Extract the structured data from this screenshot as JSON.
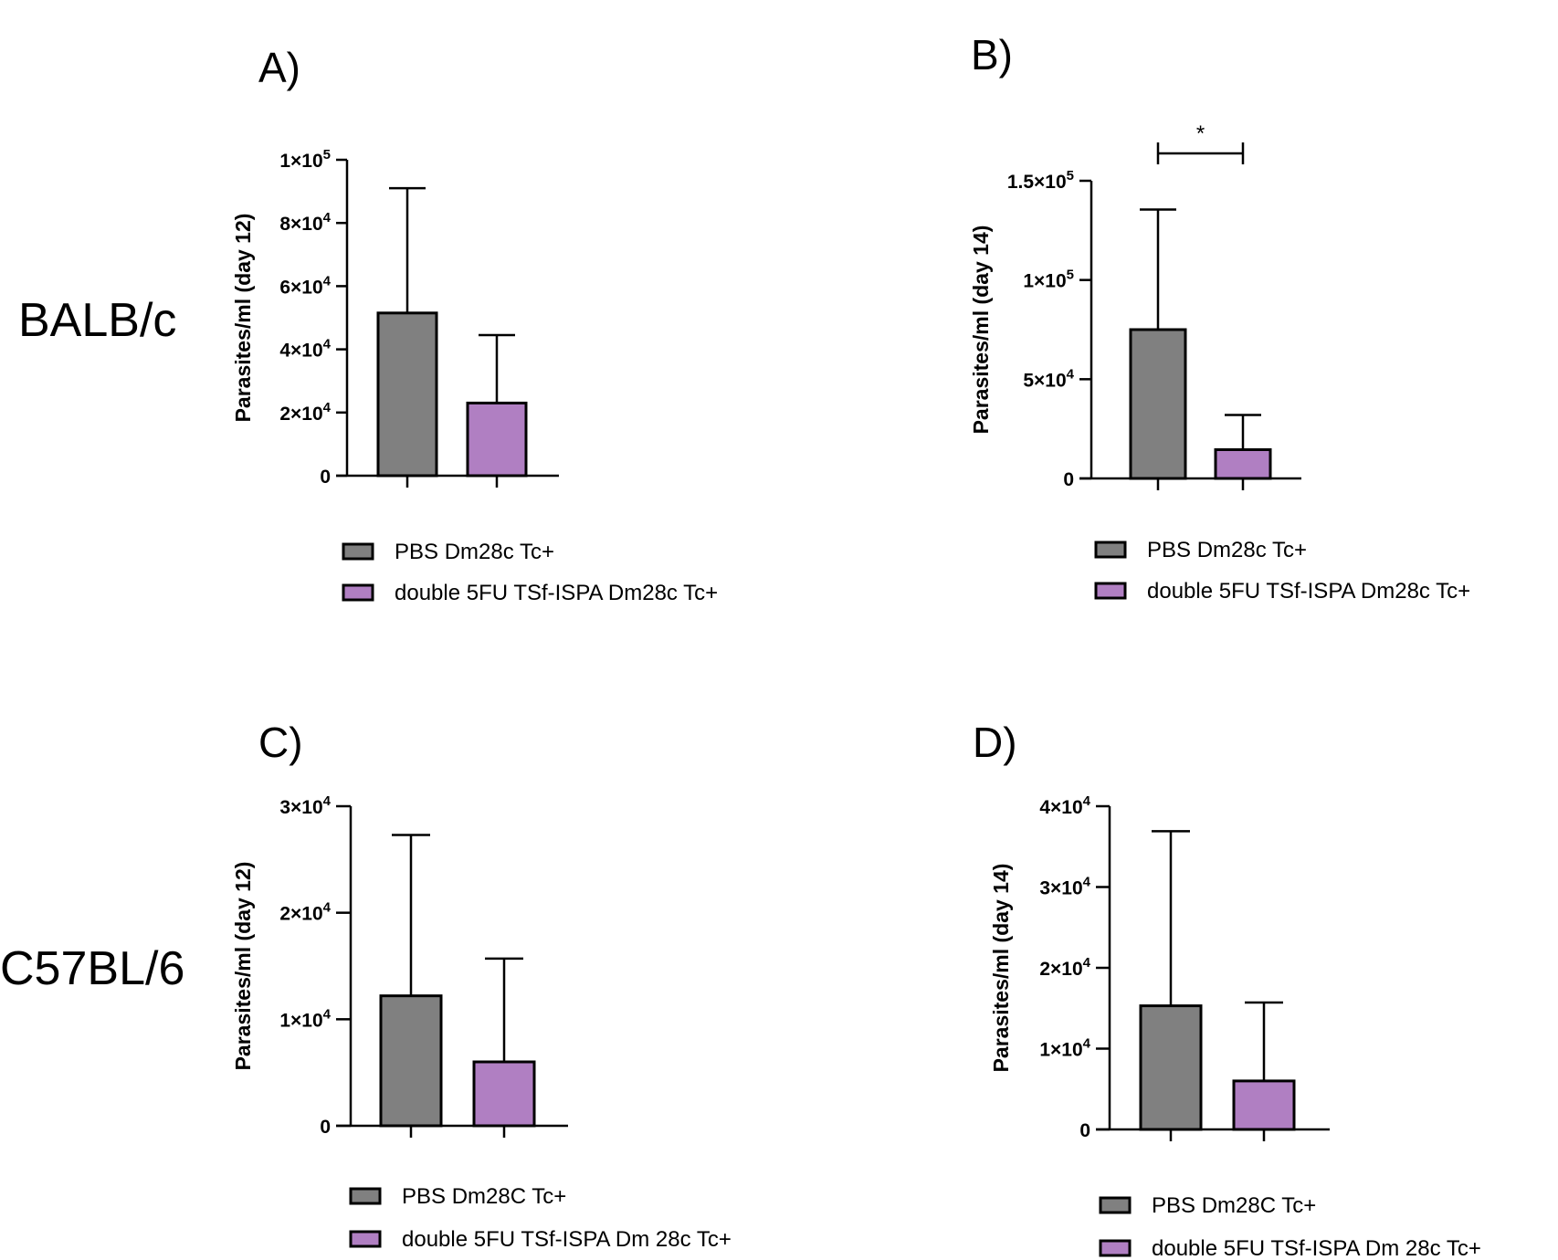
{
  "figure": {
    "row_labels": [
      "BALB/c",
      "C57BL/6"
    ]
  },
  "colors": {
    "pbs": "#808080",
    "vaccine": "#b07fc2",
    "stroke": "#000000"
  },
  "chart_data": [
    {
      "type": "bar",
      "panel": "A)",
      "mouse_strain": "BALB/c",
      "ylabel": "Parasites/ml (day 12)",
      "ylim": [
        0,
        100000
      ],
      "yticks": [
        {
          "value": 0,
          "base": "0",
          "exp": ""
        },
        {
          "value": 20000,
          "base": "2×10",
          "exp": "4"
        },
        {
          "value": 40000,
          "base": "4×10",
          "exp": "4"
        },
        {
          "value": 60000,
          "base": "6×10",
          "exp": "4"
        },
        {
          "value": 80000,
          "base": "8×10",
          "exp": "4"
        },
        {
          "value": 100000,
          "base": "1×10",
          "exp": "5"
        }
      ],
      "categories": [
        "PBS Dm28c Tc+",
        "double 5FU TSf-ISPA Dm28c Tc+"
      ],
      "values": [
        51500,
        23000
      ],
      "error": [
        39500,
        21500
      ],
      "legend": [
        "PBS Dm28c Tc+",
        "double 5FU TSf-ISPA Dm28c Tc+"
      ],
      "significance": null
    },
    {
      "type": "bar",
      "panel": "B)",
      "mouse_strain": "BALB/c",
      "ylabel": "Parasites/ml (day 14)",
      "ylim": [
        0,
        150000
      ],
      "yticks": [
        {
          "value": 0,
          "base": "0",
          "exp": ""
        },
        {
          "value": 50000,
          "base": "5×10",
          "exp": "4"
        },
        {
          "value": 100000,
          "base": "1×10",
          "exp": "5"
        },
        {
          "value": 150000,
          "base": "1.5×10",
          "exp": "5"
        }
      ],
      "categories": [
        "PBS Dm28c Tc+",
        "double 5FU TSf-ISPA Dm28c Tc+"
      ],
      "values": [
        75000,
        14500
      ],
      "error": [
        60500,
        17500
      ],
      "legend": [
        "PBS Dm28c Tc+",
        "double 5FU TSf-ISPA Dm28c Tc+"
      ],
      "significance": "*"
    },
    {
      "type": "bar",
      "panel": "C)",
      "mouse_strain": "C57BL/6",
      "ylabel": "Parasites/ml (day 12)",
      "ylim": [
        0,
        30000
      ],
      "yticks": [
        {
          "value": 0,
          "base": "0",
          "exp": ""
        },
        {
          "value": 10000,
          "base": "1×10",
          "exp": "4"
        },
        {
          "value": 20000,
          "base": "2×10",
          "exp": "4"
        },
        {
          "value": 30000,
          "base": "3×10",
          "exp": "4"
        }
      ],
      "categories": [
        "PBS Dm28C Tc+",
        "double 5FU TSf-ISPA Dm 28c Tc+"
      ],
      "values": [
        12200,
        6000
      ],
      "error": [
        15100,
        9700
      ],
      "legend": [
        "PBS Dm28C Tc+",
        "double 5FU TSf-ISPA Dm 28c Tc+"
      ],
      "significance": null
    },
    {
      "type": "bar",
      "panel": "D)",
      "mouse_strain": "C57BL/6",
      "ylabel": "Parasites/ml (day 14)",
      "ylim": [
        0,
        40000
      ],
      "yticks": [
        {
          "value": 0,
          "base": "0",
          "exp": ""
        },
        {
          "value": 10000,
          "base": "1×10",
          "exp": "4"
        },
        {
          "value": 20000,
          "base": "2×10",
          "exp": "4"
        },
        {
          "value": 30000,
          "base": "3×10",
          "exp": "4"
        },
        {
          "value": 40000,
          "base": "4×10",
          "exp": "4"
        }
      ],
      "categories": [
        "PBS Dm28C Tc+",
        "double 5FU TSf-ISPA Dm 28c Tc+"
      ],
      "values": [
        15300,
        6000
      ],
      "error": [
        21600,
        9700
      ],
      "legend": [
        "PBS Dm28C Tc+",
        "double 5FU TSf-ISPA Dm 28c Tc+"
      ],
      "significance": null
    }
  ]
}
